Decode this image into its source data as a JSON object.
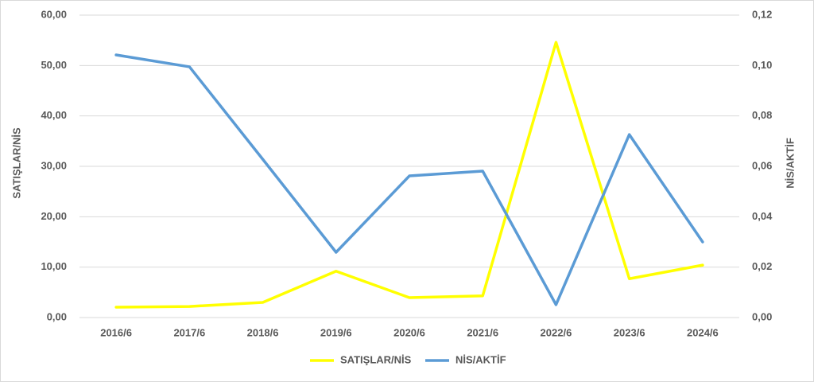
{
  "chart_data": {
    "type": "line",
    "categories": [
      "2016/6",
      "2017/6",
      "2018/6",
      "2019/6",
      "2020/6",
      "2021/6",
      "2022/6",
      "2023/6",
      "2024/6"
    ],
    "series": [
      {
        "name": "SATIŞLAR/NİS",
        "color": "#ffff00",
        "values": [
          2.05,
          2.2,
          3.0,
          9.2,
          3.95,
          4.3,
          54.6,
          7.7,
          10.4
        ]
      },
      {
        "name": "NİS/AKTİF",
        "color": "#5b9bd5",
        "axis": "y2",
        "values": [
          0.1042,
          0.0995,
          0.0628,
          0.0259,
          0.0562,
          0.0581,
          0.0051,
          0.0726,
          0.03
        ]
      }
    ],
    "y_label": "SATIŞLAR/NİS",
    "y2_label": "NİS/AKTİF",
    "ylim": [
      0,
      60
    ],
    "yticks": [
      {
        "value": 0,
        "label": "0,00"
      },
      {
        "value": 10,
        "label": "10,00"
      },
      {
        "value": 20,
        "label": "20,00"
      },
      {
        "value": 30,
        "label": "30,00"
      },
      {
        "value": 40,
        "label": "40,00"
      },
      {
        "value": 50,
        "label": "50,00"
      },
      {
        "value": 60,
        "label": "60,00"
      }
    ],
    "y2lim": [
      0,
      0.12
    ],
    "y2ticks": [
      {
        "value": 0,
        "label": "0,00"
      },
      {
        "value": 0.02,
        "label": "0,02"
      },
      {
        "value": 0.04,
        "label": "0,04"
      },
      {
        "value": 0.06,
        "label": "0,06"
      },
      {
        "value": 0.08,
        "label": "0,08"
      },
      {
        "value": 0.1,
        "label": "0,10"
      },
      {
        "value": 0.12,
        "label": "0,12"
      }
    ],
    "grid": true,
    "legend": "bottom"
  }
}
